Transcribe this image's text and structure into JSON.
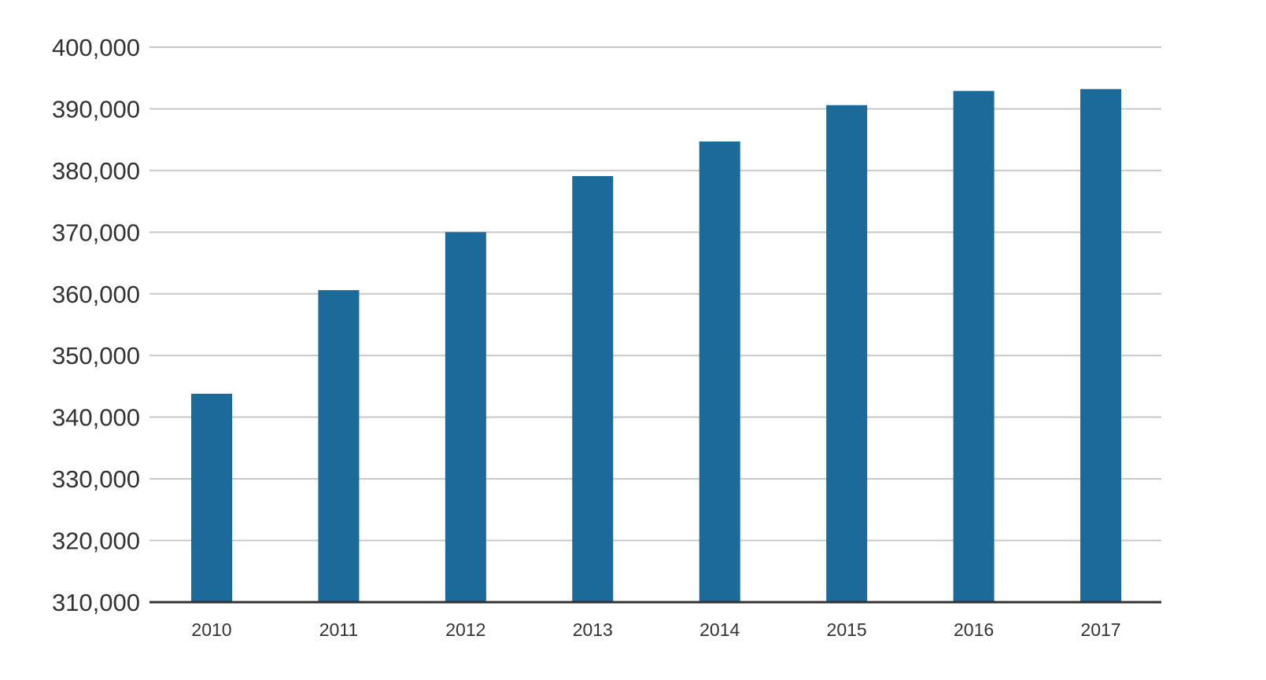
{
  "chart_data": {
    "type": "bar",
    "title": "",
    "xlabel": "",
    "ylabel": "",
    "categories": [
      "2010",
      "2011",
      "2012",
      "2013",
      "2014",
      "2015",
      "2016",
      "2017"
    ],
    "values": [
      343800,
      360600,
      370000,
      379100,
      384700,
      390600,
      392900,
      393200
    ],
    "ylim": [
      310000,
      400000
    ],
    "yticks": [
      310000,
      320000,
      330000,
      340000,
      350000,
      360000,
      370000,
      380000,
      390000,
      400000
    ],
    "ytick_labels": [
      "310,000",
      "320,000",
      "330,000",
      "340,000",
      "350,000",
      "360,000",
      "370,000",
      "380,000",
      "390,000",
      "400,000"
    ],
    "grid": true,
    "legend": "none",
    "colors": {
      "bar": "#1b6a9a",
      "grid": "#c8c8c8",
      "axis": "#333333",
      "text": "#333333"
    }
  }
}
